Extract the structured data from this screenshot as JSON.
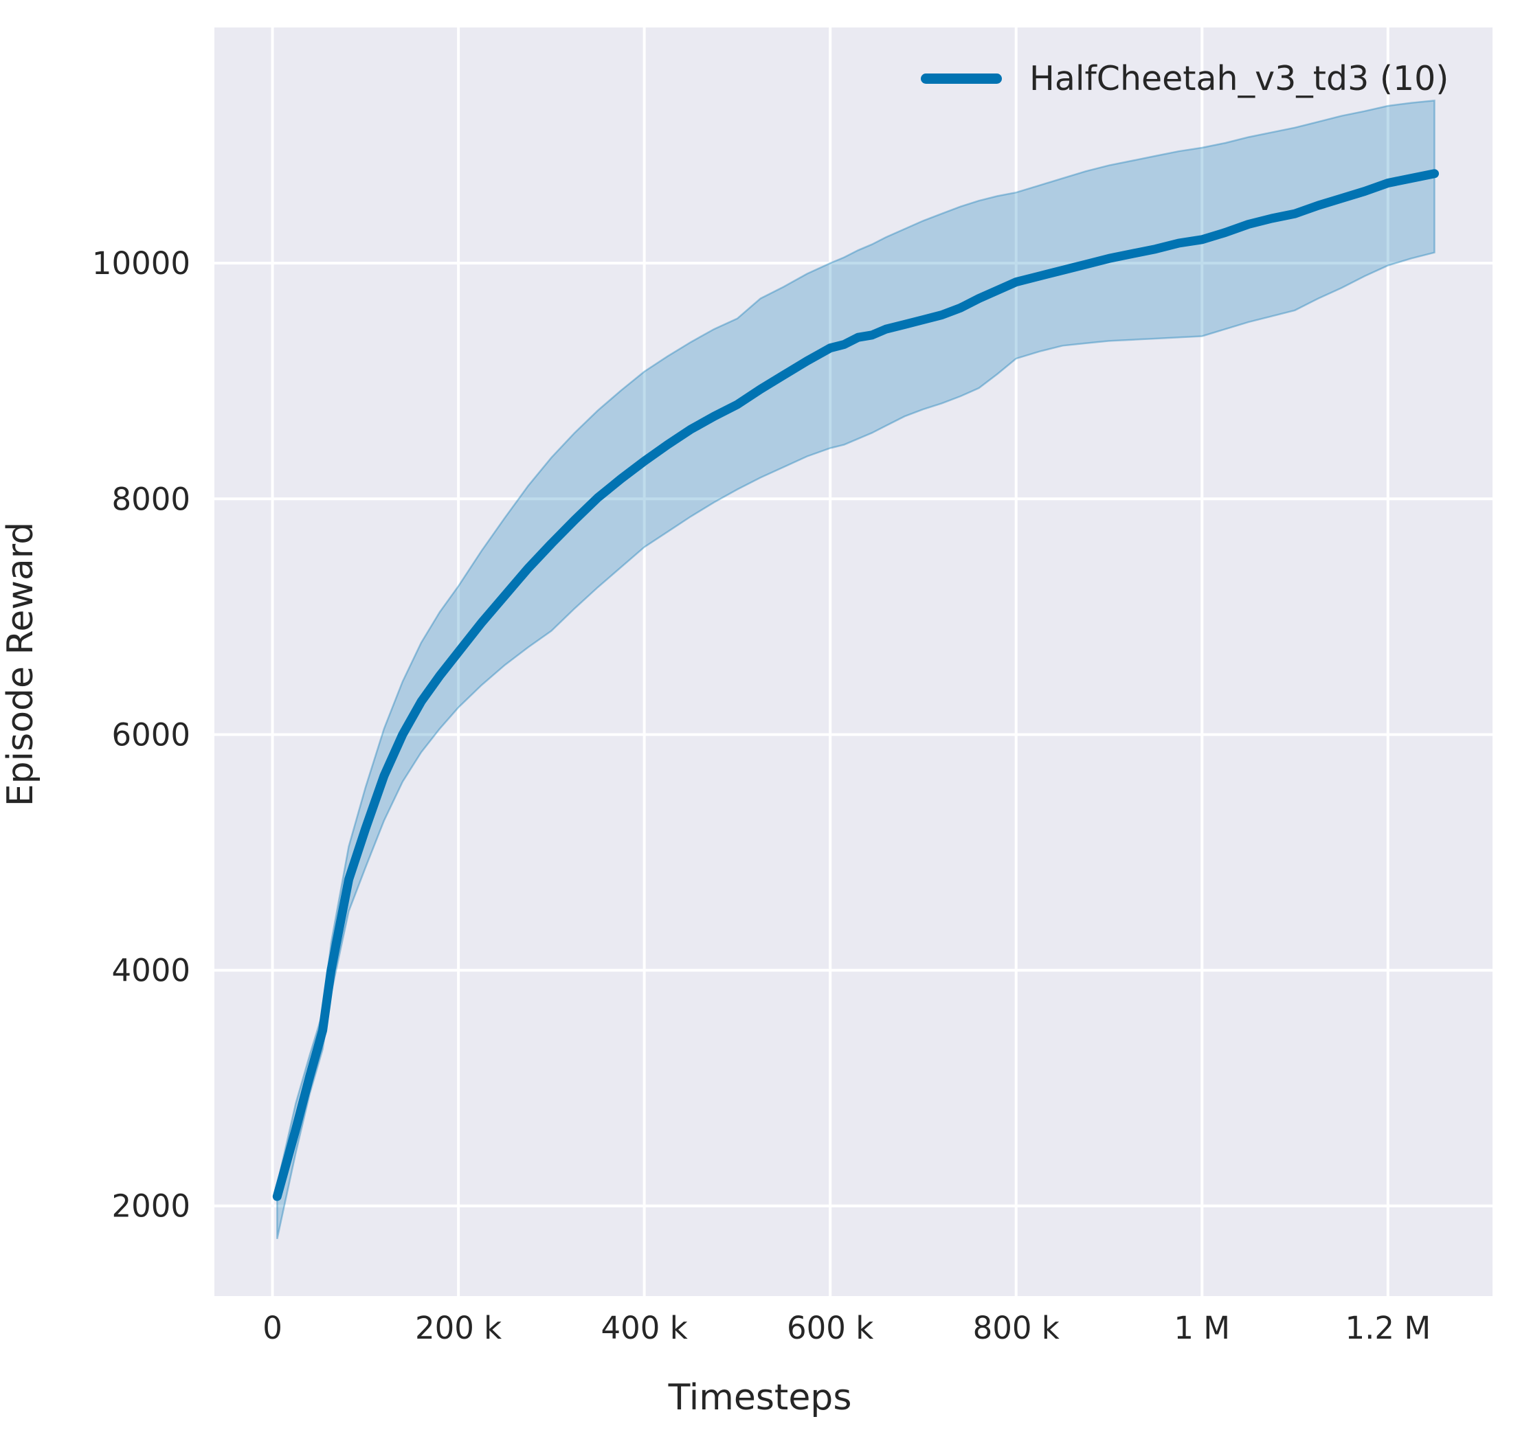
{
  "chart_data": {
    "type": "line",
    "title": "",
    "xlabel": "Timesteps",
    "ylabel": "Episode Reward",
    "grid": true,
    "legend_position": "upper right",
    "panel_background": "#eaeaf2",
    "grid_color": "#ffffff",
    "text_color": "#262626",
    "xlim": [
      -62500,
      1312500
    ],
    "ylim": [
      1235,
      12000
    ],
    "x_ticks": [
      {
        "value": 0,
        "label": "0"
      },
      {
        "value": 200000,
        "label": "200 k"
      },
      {
        "value": 400000,
        "label": "400 k"
      },
      {
        "value": 600000,
        "label": "600 k"
      },
      {
        "value": 800000,
        "label": "800 k"
      },
      {
        "value": 1000000,
        "label": "1 M"
      },
      {
        "value": 1200000,
        "label": "1.2 M"
      }
    ],
    "y_ticks": [
      {
        "value": 2000,
        "label": "2000"
      },
      {
        "value": 4000,
        "label": "4000"
      },
      {
        "value": 6000,
        "label": "6000"
      },
      {
        "value": 8000,
        "label": "8000"
      },
      {
        "value": 10000,
        "label": "10000"
      }
    ],
    "series": [
      {
        "name": "HalfCheetah_v3_td3",
        "legend_label": "HalfCheetah_v3_td3 (10)",
        "color": "#0173b2",
        "line_width": 13,
        "band_alpha": 0.25,
        "x": [
          5000,
          25000,
          40000,
          54000,
          63000,
          82000,
          100000,
          120000,
          140000,
          160000,
          180000,
          200000,
          225000,
          250000,
          275000,
          300000,
          325000,
          350000,
          375000,
          400000,
          425000,
          450000,
          475000,
          500000,
          525000,
          550000,
          575000,
          600000,
          615000,
          630000,
          645000,
          660000,
          680000,
          700000,
          720000,
          740000,
          760000,
          780000,
          800000,
          825000,
          850000,
          875000,
          900000,
          925000,
          950000,
          975000,
          1000000,
          1025000,
          1050000,
          1075000,
          1100000,
          1125000,
          1150000,
          1175000,
          1200000,
          1225000,
          1250000
        ],
        "mean": [
          2080,
          2650,
          3100,
          3490,
          4000,
          4770,
          5200,
          5650,
          6000,
          6280,
          6500,
          6700,
          6950,
          7180,
          7410,
          7620,
          7820,
          8010,
          8170,
          8320,
          8460,
          8590,
          8700,
          8800,
          8930,
          9050,
          9170,
          9280,
          9310,
          9370,
          9390,
          9440,
          9480,
          9520,
          9560,
          9620,
          9700,
          9770,
          9840,
          9890,
          9940,
          9990,
          10040,
          10080,
          10120,
          10170,
          10200,
          10260,
          10330,
          10380,
          10420,
          10490,
          10550,
          10610,
          10680,
          10720,
          10760
        ],
        "lower": [
          1720,
          2450,
          2950,
          3330,
          3800,
          4500,
          4870,
          5270,
          5600,
          5850,
          6050,
          6230,
          6420,
          6590,
          6740,
          6880,
          7070,
          7250,
          7420,
          7590,
          7720,
          7850,
          7970,
          8080,
          8180,
          8270,
          8360,
          8430,
          8460,
          8510,
          8560,
          8620,
          8700,
          8760,
          8810,
          8870,
          8940,
          9060,
          9190,
          9250,
          9300,
          9320,
          9340,
          9350,
          9360,
          9370,
          9380,
          9440,
          9500,
          9550,
          9600,
          9700,
          9790,
          9890,
          9980,
          10040,
          10090
        ],
        "upper": [
          2180,
          2870,
          3280,
          3640,
          4230,
          5050,
          5550,
          6050,
          6450,
          6780,
          7040,
          7260,
          7560,
          7840,
          8110,
          8350,
          8560,
          8750,
          8920,
          9080,
          9210,
          9330,
          9440,
          9530,
          9700,
          9800,
          9910,
          10000,
          10050,
          10110,
          10160,
          10220,
          10290,
          10360,
          10420,
          10480,
          10530,
          10570,
          10600,
          10660,
          10720,
          10780,
          10830,
          10870,
          10910,
          10950,
          10980,
          11020,
          11070,
          11110,
          11150,
          11200,
          11250,
          11290,
          11335,
          11360,
          11380
        ]
      }
    ]
  }
}
